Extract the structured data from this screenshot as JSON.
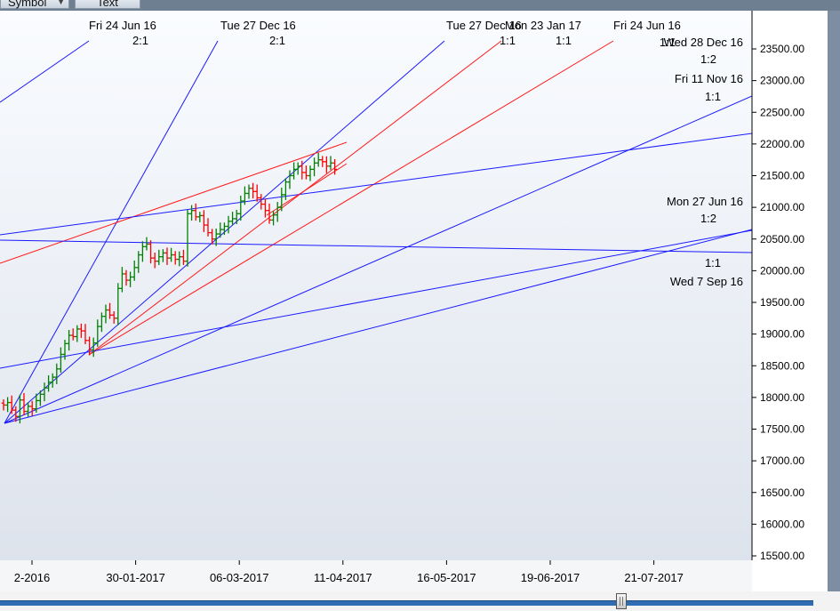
{
  "toolbar": {
    "tabs": [
      {
        "label": "Symbol"
      },
      {
        "label": "Text"
      }
    ]
  },
  "colors": {
    "axis": "#000000",
    "fan_blue": "#1a1aff",
    "fan_red": "#ff1a1a",
    "bar_up": "#008000",
    "bar_down": "#ff0000",
    "plot_top": "#fafcff",
    "plot_bottom": "#dde3ec"
  },
  "chart_data": {
    "type": "ohlc-bar",
    "y_ticks": [
      "23500.00",
      "23000.00",
      "22500.00",
      "22000.00",
      "21500.00",
      "21000.00",
      "20500.00",
      "20000.00",
      "19500.00",
      "19000.00",
      "18500.00",
      "18000.00",
      "17500.00",
      "17000.00",
      "16500.00",
      "16000.00",
      "15500.00"
    ],
    "ylim": [
      15500,
      23500
    ],
    "x_ticks": [
      "2-2016",
      "30-01-2017",
      "06-03-2017",
      "11-04-2017",
      "16-05-2017",
      "19-06-2017",
      "21-07-2017"
    ],
    "series_close": [
      17880,
      17920,
      17800,
      17700,
      17960,
      17780,
      17860,
      17820,
      17950,
      18050,
      18150,
      18240,
      18320,
      18450,
      18680,
      18850,
      18980,
      18960,
      19080,
      19050,
      18900,
      18750,
      18860,
      19120,
      19280,
      19380,
      19300,
      19250,
      19720,
      19950,
      19850,
      19900,
      20050,
      20250,
      20380,
      20420,
      20200,
      20150,
      20220,
      20280,
      20200,
      20250,
      20180,
      20220,
      20150,
      20900,
      20950,
      20850,
      20870,
      20720,
      20600,
      20500,
      20580,
      20650,
      20700,
      20780,
      20820,
      20900,
      21100,
      21220,
      21300,
      21250,
      21150,
      21050,
      20950,
      20800,
      20880,
      21000,
      21200,
      21400,
      21500,
      21600,
      21650,
      21550,
      21500,
      21600,
      21700,
      21750,
      21720,
      21650,
      21700,
      21600
    ],
    "annotations": [
      {
        "label": "Fri 24 Jun 16"
      },
      {
        "label": "2:1"
      },
      {
        "label": "Tue 27 Dec 16"
      },
      {
        "label": "2:1"
      },
      {
        "label": "Tue 27 Dec 16"
      },
      {
        "label": "1:1"
      },
      {
        "label": "Mon 23 Jan 17"
      },
      {
        "label": "1:1"
      },
      {
        "label": "Fri 24 Jun 16"
      },
      {
        "label": "Wed 28 Dec 16"
      },
      {
        "label": "1:1"
      },
      {
        "label": "1:2"
      },
      {
        "label": "Fri 11 Nov 16"
      },
      {
        "label": "1:1"
      },
      {
        "label": "Mon 27 Jun 16"
      },
      {
        "label": "1:2"
      },
      {
        "label": "1:1"
      },
      {
        "label": "Wed 7 Sep 16"
      }
    ],
    "grid": false,
    "legend": "none"
  }
}
